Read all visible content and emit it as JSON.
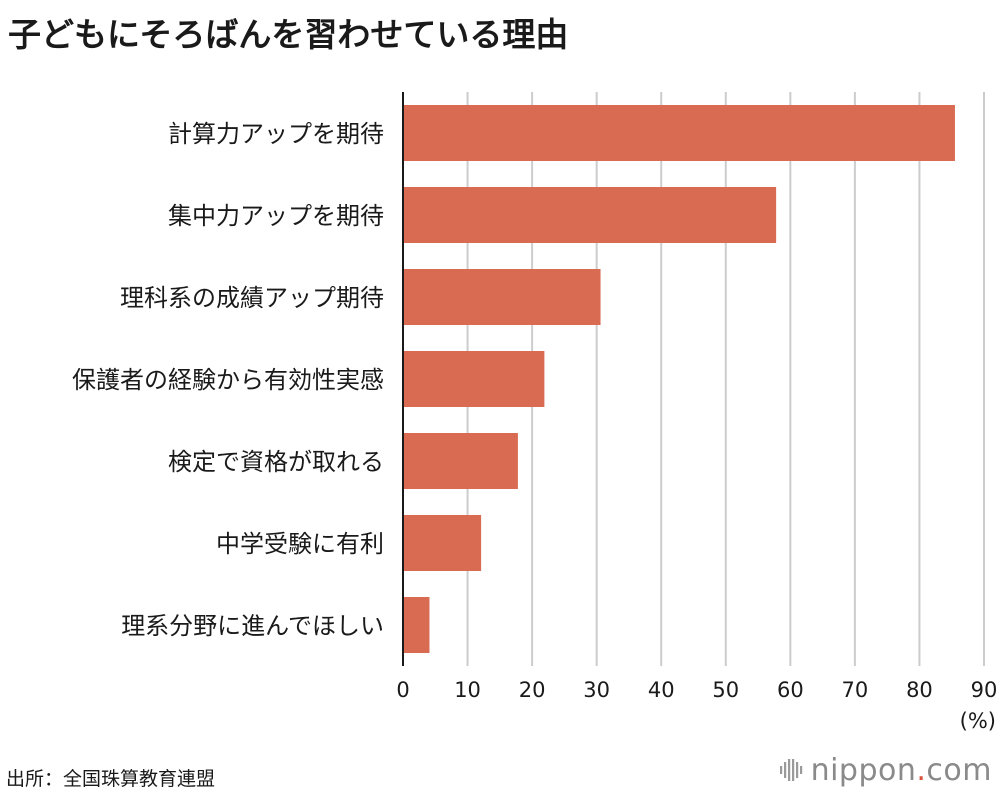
{
  "title": "子どもにそろばんを習わせている理由",
  "source": "出所：全国珠算教育連盟",
  "logo": {
    "name": "nippon",
    "dot": ".",
    "suffix": "com",
    "mark_icon": "bars-logo-icon"
  },
  "colors": {
    "bar": "#d96b52",
    "grid": "#cccccc",
    "axis": "#1a1a1a",
    "logo_accent": "#d9543b"
  },
  "chart_data": {
    "type": "bar",
    "orientation": "horizontal",
    "title": "子どもにそろばんを習わせている理由",
    "categories": [
      "計算力アップを期待",
      "集中力アップを期待",
      "理科系の成績アップ期待",
      "保護者の経験から有効性実感",
      "検定で資格が取れる",
      "中学受験に有利",
      "理系分野に進んでほしい"
    ],
    "values": [
      85.5,
      57.8,
      30.6,
      21.9,
      17.8,
      12.1,
      4.1
    ],
    "xlim": [
      0,
      90
    ],
    "xticks": [
      0,
      10,
      20,
      30,
      40,
      50,
      60,
      70,
      80,
      90
    ],
    "unit": "(%)",
    "grid": true
  }
}
